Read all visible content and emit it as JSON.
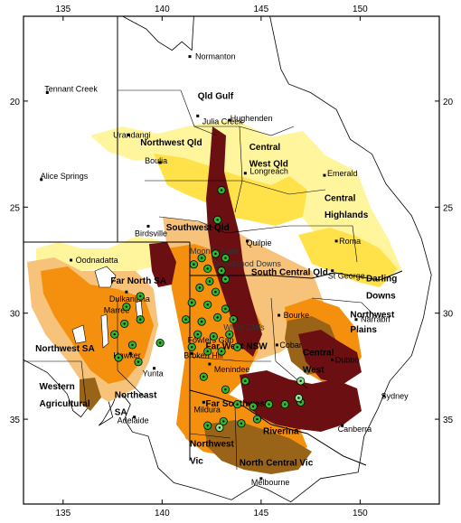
{
  "map": {
    "lon_range": [
      133,
      154
    ],
    "lat_range": [
      -39,
      -16
    ],
    "lon_ticks": [
      "135",
      "140",
      "145",
      "150"
    ],
    "lat_ticks": [
      "20",
      "25",
      "30",
      "35"
    ],
    "colors": {
      "yellow_light": "#fff59d",
      "yellow": "#ffe14a",
      "tan": "#f7c27a",
      "orange": "#f5900f",
      "brown": "#9a6418",
      "maroon": "#6b0f12",
      "green_dot": "#2fb52f",
      "green_light": "#8be38b"
    },
    "regions": [
      {
        "name": "Qld Gulf",
        "lon": 141.8,
        "lat": -19.9
      },
      {
        "name": "Northwest Qld",
        "lon": 138.9,
        "lat": -22.1
      },
      {
        "name": "Central",
        "lon": 144.4,
        "lat": -22.3
      },
      {
        "name": "West Qld",
        "lon": 144.4,
        "lat": -23.1
      },
      {
        "name": "Central",
        "lon": 148.2,
        "lat": -24.7
      },
      {
        "name": "Highlands",
        "lon": 148.2,
        "lat": -25.5
      },
      {
        "name": "Southwest Qld",
        "lon": 140.2,
        "lat": -26.1
      },
      {
        "name": "Far North SA",
        "lon": 137.4,
        "lat": -28.6
      },
      {
        "name": "South Central Qld",
        "lon": 144.5,
        "lat": -28.2
      },
      {
        "name": "Darling",
        "lon": 150.3,
        "lat": -28.5
      },
      {
        "name": "Downs",
        "lon": 150.3,
        "lat": -29.3
      },
      {
        "name": "Northwest",
        "lon": 149.5,
        "lat": -30.2
      },
      {
        "name": "Plains",
        "lon": 149.5,
        "lat": -30.9
      },
      {
        "name": "Northwest SA",
        "lon": 133.6,
        "lat": -31.8
      },
      {
        "name": "Far West NSW",
        "lon": 142.2,
        "lat": -31.7
      },
      {
        "name": "Central",
        "lon": 147.1,
        "lat": -32.0
      },
      {
        "name": "West",
        "lon": 147.1,
        "lat": -32.8
      },
      {
        "name": "Northeast",
        "lon": 137.6,
        "lat": -34.0
      },
      {
        "name": "SA",
        "lon": 137.6,
        "lat": -34.8
      },
      {
        "name": "Western",
        "lon": 133.8,
        "lat": -33.6
      },
      {
        "name": "Agricultural",
        "lon": 133.8,
        "lat": -34.4
      },
      {
        "name": "Far Southwest",
        "lon": 142.2,
        "lat": -34.4
      },
      {
        "name": "Riverina",
        "lon": 145.1,
        "lat": -35.7
      },
      {
        "name": "Northwest",
        "lon": 141.4,
        "lat": -36.3
      },
      {
        "name": "Vic",
        "lon": 141.4,
        "lat": -37.1
      },
      {
        "name": "North Central Vic",
        "lon": 143.9,
        "lat": -37.2
      }
    ],
    "towns": [
      {
        "name": "Normanton",
        "lon": 141.4,
        "lat": -17.9,
        "dx": 3,
        "dy": 0
      },
      {
        "name": "Tennant Creek",
        "lon": 134.2,
        "lat": -19.6,
        "dx": -6,
        "dy": -4
      },
      {
        "name": "Hughenden",
        "lon": 143.4,
        "lat": -20.9,
        "dx": -2,
        "dy": -2
      },
      {
        "name": "Julia Creek",
        "lon": 141.8,
        "lat": -20.7,
        "dx": 2,
        "dy": 6
      },
      {
        "name": "Urandangi",
        "lon": 138.3,
        "lat": -21.6,
        "dx": -20,
        "dy": 0
      },
      {
        "name": "Boulia",
        "lon": 139.9,
        "lat": -22.9,
        "dx": -20,
        "dy": -2
      },
      {
        "name": "Longreach",
        "lon": 144.2,
        "lat": -23.4,
        "dx": 2,
        "dy": -2
      },
      {
        "name": "Emerald",
        "lon": 148.2,
        "lat": -23.5,
        "dx": 0,
        "dy": -2
      },
      {
        "name": "Alice Springs",
        "lon": 133.9,
        "lat": -23.7,
        "dx": -4,
        "dy": -4
      },
      {
        "name": "Birdsville",
        "lon": 139.3,
        "lat": -25.9,
        "dx": -18,
        "dy": 8
      },
      {
        "name": "Roma",
        "lon": 148.8,
        "lat": -26.6,
        "dx": 0,
        "dy": 0
      },
      {
        "name": "Quilpie",
        "lon": 144.3,
        "lat": -26.6,
        "dx": -4,
        "dy": 2
      },
      {
        "name": "Oodnadatta",
        "lon": 135.4,
        "lat": -27.5,
        "dx": 2,
        "dy": 0
      },
      {
        "name": "St George",
        "lon": 148.6,
        "lat": -28.0,
        "dx": -8,
        "dy": 6
      },
      {
        "name": "Dulkaninna",
        "lon": 138.2,
        "lat": -29.0,
        "dx": -22,
        "dy": 8
      },
      {
        "name": "Bourke",
        "lon": 145.9,
        "lat": -30.1,
        "dx": 2,
        "dy": 0
      },
      {
        "name": "Narrabri",
        "lon": 149.8,
        "lat": -30.3,
        "dx": 2,
        "dy": 0
      },
      {
        "name": "Marree",
        "lon": 138.1,
        "lat": -29.7,
        "dx": -26,
        "dy": 4
      },
      {
        "name": "Fowlers Gap",
        "lon": 141.7,
        "lat": -31.1,
        "dx": -12,
        "dy": 4
      },
      {
        "name": "Cobar",
        "lon": 145.8,
        "lat": -31.5,
        "dx": 0,
        "dy": 0
      },
      {
        "name": "Dubbo",
        "lon": 148.6,
        "lat": -32.2,
        "dx": 0,
        "dy": 0
      },
      {
        "name": "Broken Hill",
        "lon": 141.5,
        "lat": -31.9,
        "dx": -12,
        "dy": 2
      },
      {
        "name": "Hawker",
        "lon": 138.4,
        "lat": -31.9,
        "dx": -22,
        "dy": 2
      },
      {
        "name": "Yunta",
        "lon": 139.6,
        "lat": -32.6,
        "dx": -16,
        "dy": 6
      },
      {
        "name": "Menindee",
        "lon": 142.4,
        "lat": -32.4,
        "dx": 2,
        "dy": 6
      },
      {
        "name": "Sydney",
        "lon": 151.2,
        "lat": -33.9,
        "dx": -6,
        "dy": 0
      },
      {
        "name": "Mildura",
        "lon": 142.1,
        "lat": -34.2,
        "dx": -14,
        "dy": 8
      },
      {
        "name": "Canberra",
        "lon": 149.1,
        "lat": -35.3,
        "dx": -8,
        "dy": 4
      },
      {
        "name": "Adelaide",
        "lon": 138.6,
        "lat": -34.9,
        "dx": -22,
        "dy": 4
      },
      {
        "name": "Melbourne",
        "lon": 145.0,
        "lat": -37.8,
        "dx": -14,
        "dy": 4
      }
    ],
    "faint_labels": [
      {
        "name": "Moonda Lake",
        "lon": 141.4,
        "lat": -27.2
      },
      {
        "name": "Bloodwood Downs",
        "lon": 142.6,
        "lat": -27.8
      },
      {
        "name": "White Cliffs",
        "lon": 143.1,
        "lat": -30.8
      }
    ],
    "sites": [
      [
        143.0,
        -24.2
      ],
      [
        142.8,
        -25.6
      ],
      [
        142.0,
        -27.4
      ],
      [
        142.7,
        -27.2
      ],
      [
        143.2,
        -27.4
      ],
      [
        141.6,
        -27.7
      ],
      [
        142.3,
        -27.9
      ],
      [
        143.0,
        -28.0
      ],
      [
        142.4,
        -28.5
      ],
      [
        143.2,
        -28.4
      ],
      [
        141.9,
        -28.8
      ],
      [
        142.7,
        -29.0
      ],
      [
        138.9,
        -29.2
      ],
      [
        138.2,
        -29.7
      ],
      [
        138.1,
        -30.5
      ],
      [
        138.9,
        -30.3
      ],
      [
        137.6,
        -31.0
      ],
      [
        138.5,
        -31.5
      ],
      [
        137.8,
        -32.1
      ],
      [
        138.8,
        -32.3
      ],
      [
        139.9,
        -31.4
      ],
      [
        141.5,
        -29.5
      ],
      [
        142.3,
        -29.6
      ],
      [
        143.2,
        -29.8
      ],
      [
        141.2,
        -30.3
      ],
      [
        142.0,
        -30.4
      ],
      [
        142.8,
        -30.2
      ],
      [
        143.6,
        -30.3
      ],
      [
        141.8,
        -31.0
      ],
      [
        142.6,
        -31.1
      ],
      [
        143.4,
        -31.0
      ],
      [
        141.5,
        -31.6
      ],
      [
        142.3,
        -31.8
      ],
      [
        143.0,
        -31.8
      ],
      [
        143.8,
        -31.6
      ],
      [
        142.1,
        -33.0
      ],
      [
        143.2,
        -33.6
      ],
      [
        144.2,
        -33.2
      ],
      [
        143.8,
        -34.3
      ],
      [
        144.6,
        -34.4
      ],
      [
        145.4,
        -34.3
      ],
      [
        146.2,
        -34.3
      ],
      [
        147.0,
        -34.2
      ],
      [
        142.3,
        -35.3
      ],
      [
        143.1,
        -35.1
      ],
      [
        144.0,
        -35.2
      ],
      [
        144.8,
        -35.0
      ]
    ],
    "sites_light": [
      [
        142.9,
        -35.4
      ],
      [
        146.9,
        -34.0
      ],
      [
        147.0,
        -33.2
      ]
    ]
  }
}
